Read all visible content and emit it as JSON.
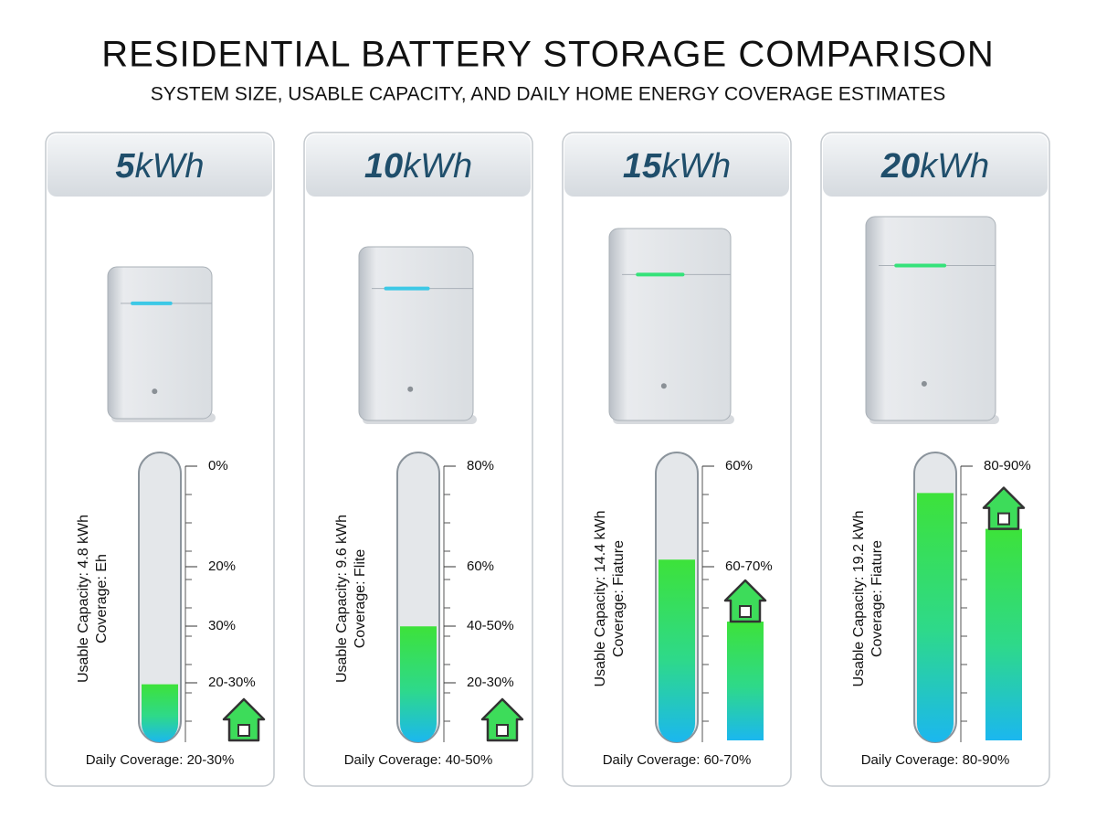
{
  "header": {
    "title": "RESIDENTIAL BATTERY STORAGE COMPARISON",
    "subtitle": "SYSTEM SIZE, USABLE CAPACITY, AND DAILY HOME ENERGY COVERAGE ESTIMATES"
  },
  "panels": [
    {
      "size": "5",
      "unit": "kWh",
      "capacity": "Usable Capacity: 4.8 kWh",
      "coverage": "Coverage: Eh",
      "scale": [
        "0%",
        "20%",
        "30%",
        "20-30%"
      ],
      "fill_level": 20,
      "daily": "Daily Coverage: 20-30%"
    },
    {
      "size": "10",
      "unit": "kWh",
      "capacity": "Usable Capacity: 9.6 kWh",
      "coverage": "Coverage: Flite",
      "scale": [
        "80%",
        "60%",
        "40-50%",
        "20-30%"
      ],
      "fill_level": 40,
      "daily": "Daily Coverage: 40-50%"
    },
    {
      "size": "15",
      "unit": "kWh",
      "capacity": "Usable Capacity: 14.4 kWh",
      "coverage": "Coverage: Fiature",
      "scale": [
        "60%",
        "60-70%"
      ],
      "fill_level": 63,
      "bar_level": 41,
      "daily": "Daily Coverage: 60-70%"
    },
    {
      "size": "20",
      "unit": "kWh",
      "capacity": "Usable Capacity: 19.2 kWh",
      "coverage": "Coverage: Fiature",
      "scale": [
        "80-90%"
      ],
      "fill_level": 86,
      "bar_level": 73,
      "daily": "Daily Coverage: 80-90%"
    }
  ]
}
